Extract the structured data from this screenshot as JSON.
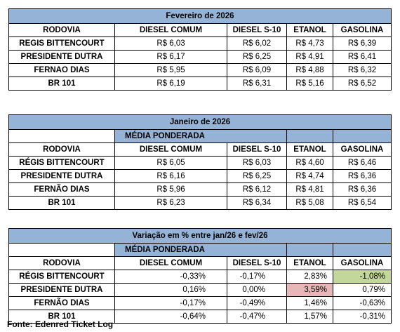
{
  "tables": [
    {
      "title": "Fevereiro de 2026",
      "header": [
        "RODOVIA",
        "DIESEL COMUM",
        "DIESEL S-10",
        "ETANOL",
        "GASOLINA"
      ],
      "rows": [
        [
          "REGIS BITTENCOURT",
          "R$ 6,03",
          "R$ 6,02",
          "R$ 4,73",
          "R$ 6,39"
        ],
        [
          "PRESIDENTE DUTRA",
          "R$ 6,17",
          "R$ 6,25",
          "R$ 4,91",
          "R$ 6,41"
        ],
        [
          "FERNAO DIAS",
          "R$ 5,95",
          "R$ 6,09",
          "R$ 4,88",
          "R$ 6,32"
        ],
        [
          "BR 101",
          "R$ 6,19",
          "R$ 6,31",
          "R$ 5,16",
          "R$ 6,52"
        ]
      ]
    },
    {
      "title": "Janeiro de 2026",
      "subtitle": "MÉDIA PONDERADA",
      "header": [
        "RODOVIA",
        "DIESEL COMUM",
        "DIESEL S-10",
        "ETANOL",
        "GASOLINA"
      ],
      "rows": [
        [
          "RÉGIS BITTENCOURT",
          "R$ 6,05",
          "R$ 6,03",
          "R$ 4,60",
          "R$ 6,46"
        ],
        [
          "PRESIDENTE DUTRA",
          "R$ 6,16",
          "R$ 6,25",
          "R$ 4,74",
          "R$ 6,36"
        ],
        [
          "FERNÃO DIAS",
          "R$ 5,96",
          "R$ 6,12",
          "R$ 4,81",
          "R$ 6,36"
        ],
        [
          "BR 101",
          "R$ 6,23",
          "R$ 6,34",
          "R$ 5,08",
          "R$ 6,54"
        ]
      ]
    },
    {
      "title": "Variação em % entre jan/26 e fev/26",
      "subtitle": "MÉDIA PONDERADA",
      "header": [
        "RODOVIA",
        "DIESEL COMUM",
        "DIESEL S-10",
        "ETANOL",
        "GASOLINA"
      ],
      "rows": [
        [
          "RÉGIS BITTENCOURT",
          "-0,33%",
          "-0,17%",
          "2,83%",
          "-1,08%"
        ],
        [
          "PRESIDENTE DUTRA",
          "0,16%",
          "0,00%",
          "3,59%",
          "0,79%"
        ],
        [
          "FERNÃO DIAS",
          "-0,17%",
          "-0,49%",
          "1,46%",
          "-0,63%"
        ],
        [
          "BR 101",
          "-0,64%",
          "-0,47%",
          "1,57%",
          "-0,31%"
        ]
      ]
    }
  ],
  "source": "Fonte: Edenred Ticket Log"
}
